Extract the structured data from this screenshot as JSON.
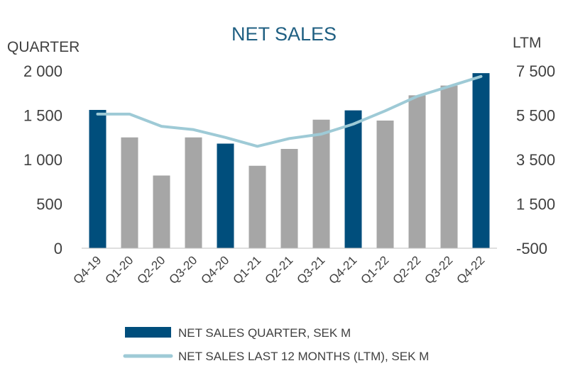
{
  "colors": {
    "highlight_bar": "#004e7c",
    "regular_bar": "#a6a6a6",
    "line": "#9ecad6",
    "title": "#1f5f82",
    "text": "#404040",
    "axis": "#bfbfbf"
  },
  "chart_data": {
    "type": "bar",
    "title": "NET SALES",
    "left_axis_title": "QUARTER",
    "right_axis_title": "LTM",
    "categories": [
      "Q4-19",
      "Q1-20",
      "Q2-20",
      "Q3-20",
      "Q4-20",
      "Q1-21",
      "Q2-21",
      "Q3-21",
      "Q4-21",
      "Q1-22",
      "Q2-22",
      "Q3-22",
      "Q4-22"
    ],
    "left_ylim": [
      0,
      2000
    ],
    "left_ticks": [
      0,
      500,
      1000,
      1500,
      2000
    ],
    "left_tick_labels": [
      "0",
      "500",
      "1 000",
      "1 500",
      "2 000"
    ],
    "right_ylim": [
      -500,
      7500
    ],
    "right_ticks": [
      -500,
      1500,
      3500,
      5500,
      7500
    ],
    "right_tick_labels": [
      "-500",
      "1 500",
      "3 500",
      "5 500",
      "7 500"
    ],
    "grid": false,
    "legend_position": "bottom",
    "series": [
      {
        "name": "NET SALES QUARTER, SEK M",
        "type": "bar",
        "axis": "left",
        "values": [
          1560,
          1250,
          820,
          1250,
          1180,
          930,
          1120,
          1450,
          1555,
          1440,
          1725,
          1835,
          1975
        ],
        "highlighted_categories": [
          "Q4-19",
          "Q4-20",
          "Q4-21",
          "Q4-22"
        ]
      },
      {
        "name": "NET SALES LAST 12 MONTHS (LTM), SEK M",
        "type": "line",
        "axis": "right",
        "values": [
          5550,
          5550,
          5000,
          4850,
          4500,
          4100,
          4450,
          4650,
          5100,
          5700,
          6350,
          6800,
          7250
        ]
      }
    ]
  }
}
